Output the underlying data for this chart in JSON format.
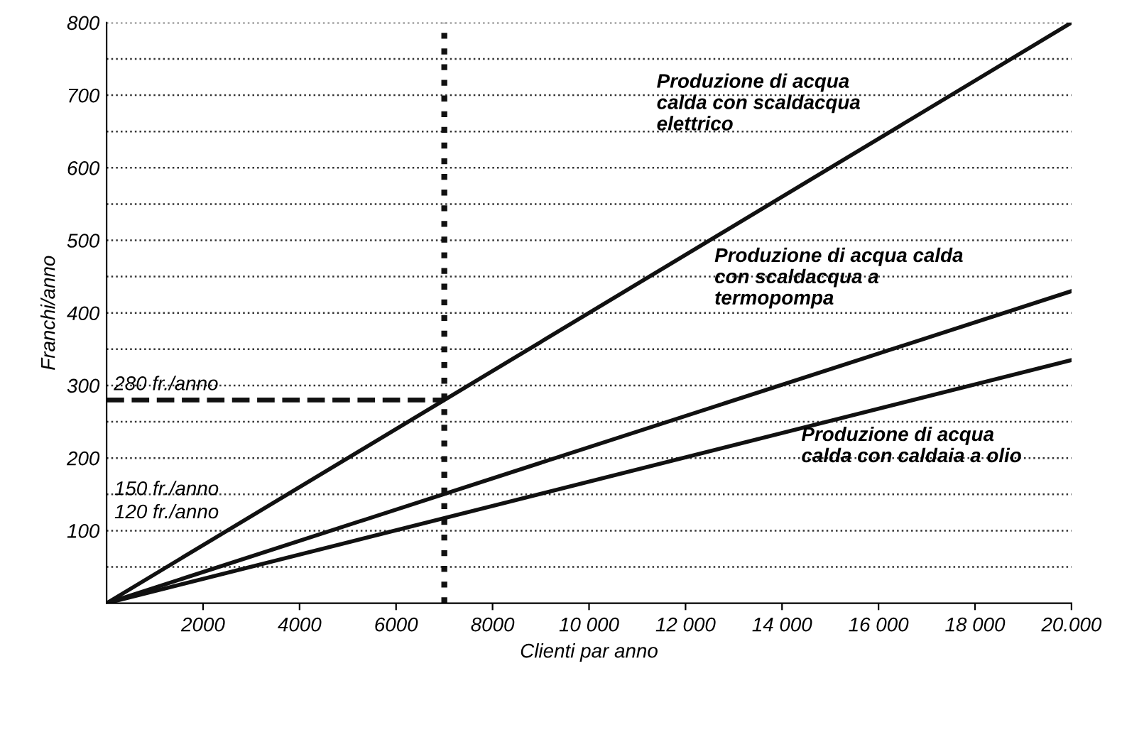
{
  "chart_data": {
    "type": "line",
    "xlabel": "Clienti par anno",
    "ylabel": "Franchi/anno",
    "x": [
      0,
      20000
    ],
    "series": [
      {
        "color": "#111111",
        "values": [
          0,
          800
        ]
      },
      {
        "color": "#111111",
        "values": [
          0,
          430
        ]
      },
      {
        "color": "#111111",
        "values": [
          0,
          335
        ]
      },
      {
        "color": "#111111",
        "x": [
          0,
          7000
        ],
        "values": [
          280,
          280
        ],
        "line_style": "dashed"
      }
    ],
    "xlim": [
      0,
      20000
    ],
    "ylim": [
      0,
      800
    ],
    "xticks": [
      2000,
      4000,
      6000,
      8000,
      {
        "value": 10000,
        "label": "10 000"
      },
      {
        "value": 12000,
        "label": "12 000"
      },
      {
        "value": 14000,
        "label": "14 000"
      },
      {
        "value": 16000,
        "label": "16 000"
      },
      {
        "value": 18000,
        "label": "18 000"
      },
      {
        "value": 20000,
        "label": "20.000"
      }
    ],
    "yticks": [
      {
        "value": 50,
        "label": null
      },
      100,
      {
        "value": 150,
        "label": null
      },
      200,
      {
        "value": 250,
        "label": null
      },
      300,
      {
        "value": 350,
        "label": null
      },
      400,
      {
        "value": 450,
        "label": null
      },
      500,
      {
        "value": 550,
        "label": null
      },
      600,
      {
        "value": 650,
        "label": null
      },
      700,
      {
        "value": 750,
        "label": null
      },
      800
    ],
    "grid": "y",
    "line_style": "solid",
    "marker": "none",
    "ref_lines": [
      {
        "axis": "x",
        "value": 7000,
        "label": null,
        "line_style": "dotted",
        "color": "#111111"
      }
    ],
    "annotations": [
      "Produzione di acqua\ncalda con scaldacqua\nelettrico",
      "Produzione di acqua calda\ncon scaldacqua a\ntermopompa",
      "Produzione di acqua\ncalda con caldaia a olio",
      {
        "text": "280 fr./anno",
        "x": 0,
        "y": 280
      },
      "150 fr./anno",
      "120 fr./anno"
    ]
  }
}
